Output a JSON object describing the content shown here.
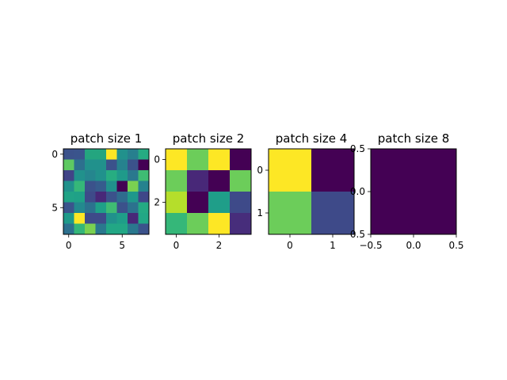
{
  "chart_data": [
    {
      "type": "heatmap",
      "title": "patch size 1",
      "grid": [
        [
          2,
          4,
          3,
          3,
          5,
          3,
          4,
          3
        ],
        [
          3,
          2,
          3,
          3,
          2,
          3,
          2,
          1
        ],
        [
          2,
          3,
          2,
          3,
          3,
          3,
          3,
          2
        ],
        [
          3,
          2,
          2,
          2,
          3,
          1,
          4,
          2
        ],
        [
          2,
          3,
          2,
          2,
          2,
          3,
          3,
          2
        ],
        [
          3,
          3,
          2,
          3,
          3,
          2,
          2,
          3
        ],
        [
          3,
          5,
          2,
          2,
          3,
          3,
          2,
          3
        ],
        [
          3,
          2,
          4,
          3,
          3,
          3,
          3,
          2
        ]
      ],
      "xlim": [
        -0.5,
        7.5
      ],
      "ylim": [
        7.5,
        -0.5
      ],
      "xticks": [
        0,
        5
      ],
      "yticks": [
        0,
        5
      ],
      "xtick_labels": [
        "0",
        "5"
      ],
      "ytick_labels": [
        "0",
        "5"
      ]
    },
    {
      "type": "heatmap",
      "title": "patch size 2",
      "grid": [
        [
          5,
          4,
          5,
          1
        ],
        [
          4,
          2,
          1,
          4
        ],
        [
          5,
          1,
          3,
          2
        ],
        [
          3,
          4,
          5,
          2
        ]
      ],
      "xlim": [
        -0.5,
        3.5
      ],
      "ylim": [
        3.5,
        -0.5
      ],
      "xticks": [
        0,
        2
      ],
      "yticks": [
        0,
        2
      ],
      "xtick_labels": [
        "0",
        "2"
      ],
      "ytick_labels": [
        "0",
        "2"
      ]
    },
    {
      "type": "heatmap",
      "title": "patch size 4",
      "grid": [
        [
          5,
          1
        ],
        [
          4,
          2
        ]
      ],
      "xlim": [
        -0.5,
        1.5
      ],
      "ylim": [
        1.5,
        -0.5
      ],
      "xticks": [
        0,
        1
      ],
      "yticks": [
        0,
        1
      ],
      "xtick_labels": [
        "0",
        "1"
      ],
      "ytick_labels": [
        "0",
        "1"
      ]
    },
    {
      "type": "heatmap",
      "title": "patch size 8",
      "grid": [
        [
          1
        ]
      ],
      "xlim": [
        -0.5,
        0.5
      ],
      "ylim": [
        0.5,
        -0.5
      ],
      "xticks": [
        -0.5,
        0.0,
        0.5
      ],
      "yticks": [
        -0.5,
        0.0,
        0.5
      ],
      "xtick_labels": [
        "−0.5",
        "0.0",
        "0.5"
      ],
      "ytick_labels": [
        "−0.5",
        "0.0",
        "0.5"
      ]
    }
  ],
  "palette": [
    "#440154",
    "#3b528b",
    "#21918c",
    "#5ec962",
    "#fde725"
  ],
  "extra_colors": {
    "patch1": {
      "0,1": "#3a548c",
      "0,2": "#24a57f",
      "0,3": "#24a57f",
      "0,6": "#277f8e",
      "0,7": "#25ab82",
      "1,0": "#5ec962",
      "1,1": "#2d708e",
      "1,5": "#26828e",
      "1,6": "#3b528b",
      "2,0": "#414487",
      "2,2": "#25868e",
      "2,4": "#27ad81",
      "2,5": "#1f9a8a",
      "2,6": "#2a788e",
      "2,7": "#3fbc73",
      "3,1": "#35b779",
      "3,2": "#3b528b",
      "3,3": "#365c8d",
      "3,4": "#21918c",
      "3,5": "#440154",
      "3,6": "#7ad151",
      "3,7": "#26828e",
      "4,0": "#20a386",
      "4,1": "#1fa187",
      "4,2": "#3e4a89",
      "4,3": "#482878",
      "4,4": "#3b528b",
      "4,5": "#2f6c8e",
      "4,6": "#1f988b",
      "4,7": "#3f4788",
      "5,0": "#3a548c",
      "5,1": "#23898e",
      "5,2": "#2c728e",
      "5,3": "#1fa088",
      "5,4": "#3fbc73",
      "5,5": "#3b528b",
      "5,6": "#2c728e",
      "5,7": "#24aa83",
      "6,0": "#1f9a8a",
      "6,2": "#3e4a89",
      "6,3": "#3e4a89",
      "6,4": "#21918c",
      "6,5": "#1f9e89",
      "6,6": "#482878",
      "6,7": "#22a785",
      "7,0": "#2d708e",
      "7,1": "#34b679",
      "7,2": "#7ad151",
      "7,3": "#2a788e",
      "7,4": "#22a785",
      "7,5": "#22a785",
      "7,6": "#2a788e",
      "7,7": "#3b528b"
    },
    "patch2": {
      "0,1": "#6ccd5a",
      "0,3": "#440154",
      "1,0": "#6ccd5a",
      "1,1": "#482878",
      "1,2": "#440154",
      "1,3": "#6ccd5a",
      "2,0": "#b5de2b",
      "2,1": "#440154",
      "2,2": "#1f9e89",
      "2,3": "#3e4a89",
      "3,0": "#35b779",
      "3,1": "#6ccd5a",
      "3,3": "#472d7b"
    },
    "patch4": {
      "0,1": "#440154",
      "1,0": "#6ccd5a",
      "1,1": "#3e4a89"
    }
  }
}
